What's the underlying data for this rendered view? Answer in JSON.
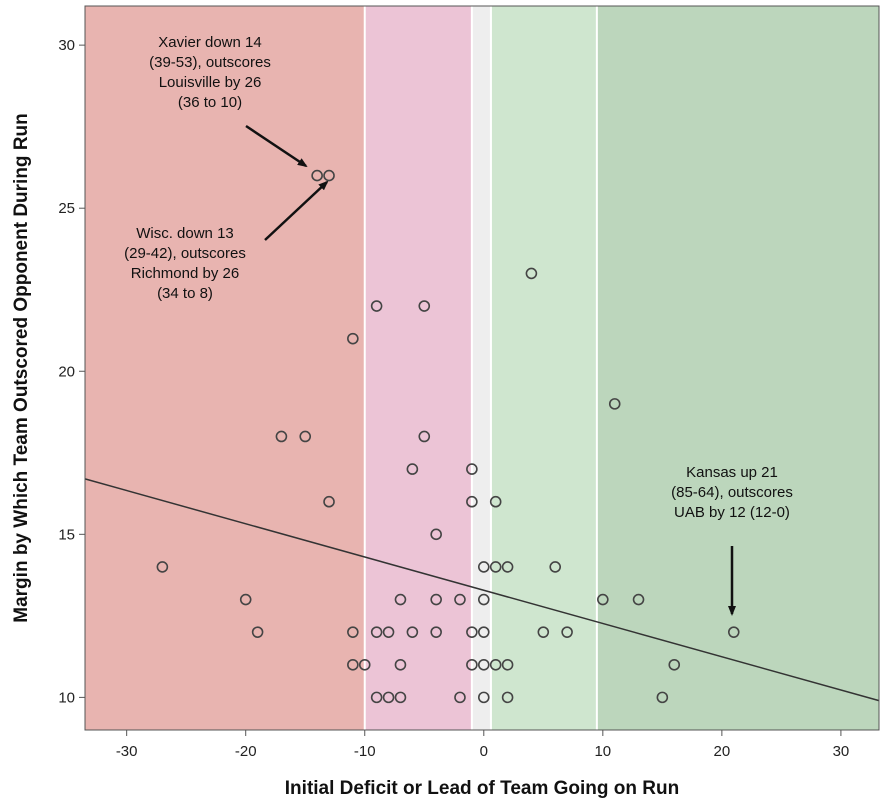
{
  "chart_data": {
    "type": "scatter",
    "title": "",
    "xlabel": "Initial Deficit or Lead of Team Going on Run",
    "ylabel": "Margin by Which Team Outscored Opponent During Run",
    "xlim": [
      -33.5,
      33.2
    ],
    "ylim": [
      9,
      31.2
    ],
    "xticks": [
      "-30",
      "-20",
      "-10",
      "0",
      "10",
      "20",
      "30"
    ],
    "yticks": [
      "10",
      "15",
      "20",
      "25",
      "30"
    ],
    "grid": false,
    "bands": [
      {
        "x0": -33.5,
        "x1": -10,
        "color": "#e8b4b0"
      },
      {
        "x0": -10,
        "x1": -1,
        "color": "#ecc4d6"
      },
      {
        "x0": -1,
        "x1": 0.6,
        "color": "#eeeeee"
      },
      {
        "x0": 0.6,
        "x1": 9.5,
        "color": "#cfe6cf"
      },
      {
        "x0": 9.5,
        "x1": 33.2,
        "color": "#bcd6bc"
      }
    ],
    "fit_line": {
      "x": [
        -33.5,
        33.2
      ],
      "y": [
        16.7,
        9.9
      ]
    },
    "points": [
      {
        "x": -14,
        "y": 26
      },
      {
        "x": -13,
        "y": 26
      },
      {
        "x": 4,
        "y": 23
      },
      {
        "x": -9,
        "y": 22
      },
      {
        "x": -5,
        "y": 22
      },
      {
        "x": -11,
        "y": 21
      },
      {
        "x": 11,
        "y": 19
      },
      {
        "x": -17,
        "y": 18
      },
      {
        "x": -15,
        "y": 18
      },
      {
        "x": -5,
        "y": 18
      },
      {
        "x": -6,
        "y": 17
      },
      {
        "x": -1,
        "y": 17
      },
      {
        "x": -13,
        "y": 16
      },
      {
        "x": -1,
        "y": 16
      },
      {
        "x": 1,
        "y": 16
      },
      {
        "x": -4,
        "y": 15
      },
      {
        "x": -27,
        "y": 14
      },
      {
        "x": 0,
        "y": 14
      },
      {
        "x": 1,
        "y": 14
      },
      {
        "x": 2,
        "y": 14
      },
      {
        "x": 6,
        "y": 14
      },
      {
        "x": -20,
        "y": 13
      },
      {
        "x": -7,
        "y": 13
      },
      {
        "x": -4,
        "y": 13
      },
      {
        "x": -2,
        "y": 13
      },
      {
        "x": 0,
        "y": 13
      },
      {
        "x": 10,
        "y": 13
      },
      {
        "x": 13,
        "y": 13
      },
      {
        "x": -19,
        "y": 12
      },
      {
        "x": -11,
        "y": 12
      },
      {
        "x": -9,
        "y": 12
      },
      {
        "x": -8,
        "y": 12
      },
      {
        "x": -6,
        "y": 12
      },
      {
        "x": -4,
        "y": 12
      },
      {
        "x": -1,
        "y": 12
      },
      {
        "x": 0,
        "y": 12
      },
      {
        "x": 5,
        "y": 12
      },
      {
        "x": 7,
        "y": 12
      },
      {
        "x": 21,
        "y": 12
      },
      {
        "x": -11,
        "y": 11
      },
      {
        "x": -10,
        "y": 11
      },
      {
        "x": -7,
        "y": 11
      },
      {
        "x": -1,
        "y": 11
      },
      {
        "x": 0,
        "y": 11
      },
      {
        "x": 1,
        "y": 11
      },
      {
        "x": 2,
        "y": 11
      },
      {
        "x": 16,
        "y": 11
      },
      {
        "x": -9,
        "y": 10
      },
      {
        "x": -8,
        "y": 10
      },
      {
        "x": -7,
        "y": 10
      },
      {
        "x": -2,
        "y": 10
      },
      {
        "x": 0,
        "y": 10
      },
      {
        "x": 2,
        "y": 10
      },
      {
        "x": 15,
        "y": 10
      }
    ],
    "annotations": [
      {
        "lines": [
          "Xavier down 14",
          "(39-53), outscores",
          "Louisville by 26",
          "(36 to 10)"
        ],
        "target": {
          "x": -14,
          "y": 26
        }
      },
      {
        "lines": [
          "Wisc. down 13",
          "(29-42), outscores",
          "Richmond by 26",
          "(34 to 8)"
        ],
        "target": {
          "x": -13,
          "y": 26
        }
      },
      {
        "lines": [
          "Kansas up 21",
          "(85-64), outscores",
          "UAB by 12 (12-0)"
        ],
        "target": {
          "x": 21,
          "y": 12
        }
      }
    ]
  }
}
